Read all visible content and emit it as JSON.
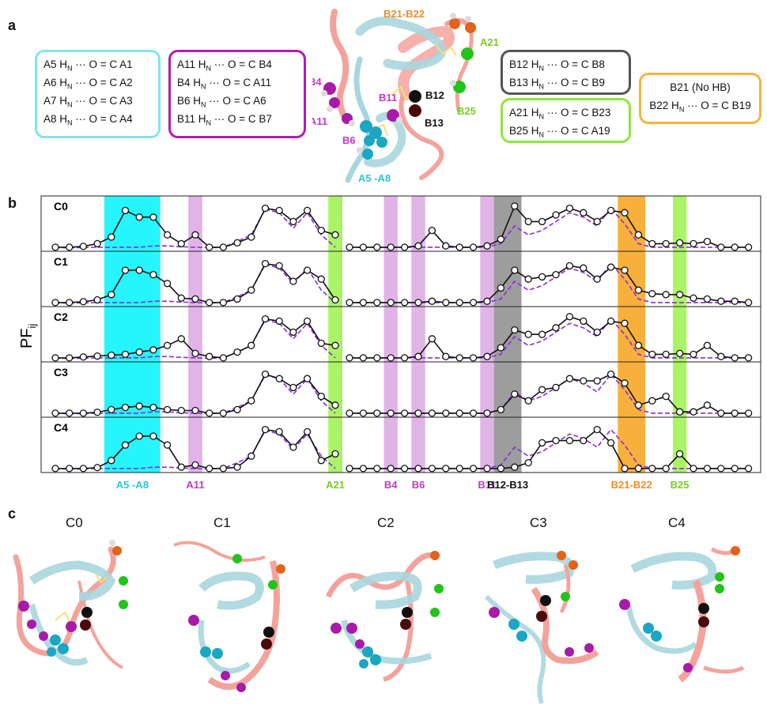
{
  "panels": {
    "a": "a",
    "b": "b",
    "c": "c"
  },
  "boxes": [
    {
      "id": "box1",
      "color": "#7fe6ec",
      "lines": [
        "A5 HN ··· O = C A1",
        "A6 HN ··· O = C A2",
        "A7 HN ··· O = C A3",
        "A8 HN ··· O = C A4"
      ]
    },
    {
      "id": "box2",
      "color": "#b21bb4",
      "lines": [
        "A11 HN ··· O = C B4",
        "B4 HN ··· O = C A11",
        "B6 HN ··· O = C A6",
        "B11 HN ··· O = C B7"
      ]
    },
    {
      "id": "box3",
      "color": "#555555",
      "lines": [
        "B12 HN ··· O = C B8",
        "B13 HN ··· O = C B9"
      ]
    },
    {
      "id": "box4",
      "color": "#8fe63c",
      "lines": [
        "A21 HN ··· O = C B23",
        "B25 HN ··· O = C A19"
      ]
    },
    {
      "id": "box5",
      "color": "#f5b63a",
      "lines": [
        "B21 (No HB)",
        "B22 HN ··· O = C B19"
      ]
    }
  ],
  "structure_labels": {
    "b21_b22": "B21-B22",
    "a21": "A21",
    "b4": "B4",
    "b11": "B11",
    "b12": "B12",
    "a11": "A11",
    "b13": "B13",
    "b25": "B25",
    "b6": "B6",
    "a5_a8": "A5 -A8"
  },
  "chart_data": {
    "type": "line",
    "ylabel": "PFij",
    "chain_a": {
      "x": [
        1,
        2,
        3,
        4,
        5,
        6,
        7,
        8,
        9,
        10,
        11,
        12,
        13,
        14,
        15,
        16,
        17,
        18,
        19,
        20,
        21
      ]
    },
    "chain_b": {
      "x": [
        1,
        2,
        3,
        4,
        5,
        6,
        7,
        8,
        9,
        10,
        11,
        12,
        13,
        14,
        15,
        16,
        17,
        18,
        19,
        20,
        21,
        22,
        23,
        24,
        25,
        26,
        27,
        28,
        29,
        30
      ]
    },
    "rows": [
      {
        "name": "C0",
        "a": [
          0.02,
          0.02,
          0.04,
          0.1,
          0.25,
          0.85,
          0.7,
          0.7,
          0.3,
          0.1,
          0.3,
          0.02,
          0.02,
          0.12,
          0.25,
          0.9,
          0.85,
          0.6,
          0.85,
          0.4,
          0.3
        ],
        "a_ref": [
          0.01,
          0.01,
          0.01,
          0.02,
          0.02,
          0.02,
          0.02,
          0.05,
          0.05,
          0.03,
          0.02,
          0.01,
          0.02,
          0.15,
          0.3,
          0.88,
          0.8,
          0.45,
          0.8,
          0.3,
          0.02
        ],
        "b": [
          0.02,
          0.02,
          0.02,
          0.02,
          0.02,
          0.05,
          0.4,
          0.05,
          0.02,
          0.02,
          0.05,
          0.2,
          0.95,
          0.6,
          0.6,
          0.75,
          0.9,
          0.8,
          0.6,
          0.85,
          0.8,
          0.3,
          0.1,
          0.1,
          0.12,
          0.1,
          0.15,
          0.02,
          0.02,
          0.02
        ],
        "b_ref": [
          0.02,
          0.02,
          0.02,
          0.02,
          0.02,
          0.02,
          0.02,
          0.02,
          0.02,
          0.02,
          0.02,
          0.1,
          0.5,
          0.3,
          0.4,
          0.6,
          0.8,
          0.7,
          0.5,
          0.9,
          0.55,
          0.1,
          0.02,
          0.02,
          0.02,
          0.02,
          0.02,
          0.02,
          0.02,
          0.02
        ]
      },
      {
        "name": "C1",
        "a": [
          0.02,
          0.02,
          0.04,
          0.08,
          0.2,
          0.75,
          0.75,
          0.65,
          0.45,
          0.12,
          0.1,
          0.02,
          0.02,
          0.1,
          0.3,
          0.9,
          0.85,
          0.5,
          0.75,
          0.55,
          0.08
        ],
        "a_ref": [
          0.01,
          0.01,
          0.01,
          0.02,
          0.02,
          0.02,
          0.02,
          0.05,
          0.05,
          0.03,
          0.02,
          0.01,
          0.02,
          0.15,
          0.3,
          0.88,
          0.8,
          0.45,
          0.8,
          0.3,
          0.02
        ],
        "b": [
          0.02,
          0.02,
          0.02,
          0.02,
          0.02,
          0.02,
          0.05,
          0.02,
          0.02,
          0.02,
          0.05,
          0.35,
          0.75,
          0.55,
          0.6,
          0.65,
          0.85,
          0.8,
          0.55,
          0.82,
          0.75,
          0.3,
          0.22,
          0.2,
          0.2,
          0.12,
          0.1,
          0.05,
          0.05,
          0.02
        ],
        "b_ref": [
          0.02,
          0.02,
          0.02,
          0.02,
          0.02,
          0.02,
          0.02,
          0.02,
          0.02,
          0.02,
          0.02,
          0.1,
          0.5,
          0.3,
          0.4,
          0.6,
          0.8,
          0.7,
          0.5,
          0.9,
          0.55,
          0.1,
          0.02,
          0.02,
          0.02,
          0.02,
          0.02,
          0.02,
          0.02,
          0.02
        ]
      },
      {
        "name": "C2",
        "a": [
          0.02,
          0.02,
          0.04,
          0.06,
          0.08,
          0.1,
          0.15,
          0.2,
          0.3,
          0.45,
          0.12,
          0.05,
          0.02,
          0.15,
          0.3,
          0.9,
          0.85,
          0.6,
          0.85,
          0.35,
          0.3
        ],
        "a_ref": [
          0.01,
          0.01,
          0.01,
          0.02,
          0.02,
          0.02,
          0.02,
          0.05,
          0.05,
          0.03,
          0.02,
          0.01,
          0.02,
          0.15,
          0.3,
          0.88,
          0.8,
          0.45,
          0.8,
          0.3,
          0.02
        ],
        "b": [
          0.02,
          0.02,
          0.02,
          0.02,
          0.02,
          0.05,
          0.45,
          0.05,
          0.02,
          0.02,
          0.05,
          0.25,
          0.65,
          0.55,
          0.55,
          0.7,
          0.95,
          0.85,
          0.6,
          0.85,
          0.8,
          0.3,
          0.1,
          0.1,
          0.12,
          0.1,
          0.3,
          0.05,
          0.02,
          0.02
        ],
        "b_ref": [
          0.02,
          0.02,
          0.02,
          0.02,
          0.02,
          0.02,
          0.02,
          0.02,
          0.02,
          0.02,
          0.02,
          0.1,
          0.5,
          0.3,
          0.4,
          0.6,
          0.8,
          0.7,
          0.5,
          0.9,
          0.55,
          0.1,
          0.02,
          0.02,
          0.02,
          0.02,
          0.02,
          0.02,
          0.02,
          0.02
        ]
      },
      {
        "name": "C3",
        "a": [
          0.02,
          0.02,
          0.02,
          0.04,
          0.1,
          0.15,
          0.18,
          0.15,
          0.1,
          0.08,
          0.08,
          0.02,
          0.02,
          0.1,
          0.3,
          0.9,
          0.8,
          0.6,
          0.8,
          0.4,
          0.2
        ],
        "a_ref": [
          0.01,
          0.01,
          0.01,
          0.02,
          0.02,
          0.02,
          0.02,
          0.05,
          0.05,
          0.03,
          0.02,
          0.01,
          0.02,
          0.15,
          0.3,
          0.88,
          0.8,
          0.45,
          0.8,
          0.3,
          0.02
        ],
        "b": [
          0.02,
          0.02,
          0.02,
          0.02,
          0.02,
          0.02,
          0.02,
          0.02,
          0.02,
          0.02,
          0.02,
          0.1,
          0.45,
          0.3,
          0.55,
          0.6,
          0.8,
          0.75,
          0.75,
          0.9,
          0.7,
          0.2,
          0.3,
          0.4,
          0.05,
          0.05,
          0.2,
          0.02,
          0.02,
          0.02
        ],
        "b_ref": [
          0.02,
          0.02,
          0.02,
          0.02,
          0.02,
          0.02,
          0.02,
          0.02,
          0.02,
          0.02,
          0.02,
          0.1,
          0.5,
          0.3,
          0.4,
          0.6,
          0.8,
          0.7,
          0.5,
          0.9,
          0.55,
          0.1,
          0.02,
          0.02,
          0.02,
          0.02,
          0.02,
          0.02,
          0.02,
          0.02
        ]
      },
      {
        "name": "C4",
        "a": [
          0.02,
          0.02,
          0.02,
          0.04,
          0.2,
          0.55,
          0.75,
          0.75,
          0.55,
          0.05,
          0.1,
          0.02,
          0.02,
          0.05,
          0.3,
          0.9,
          0.85,
          0.5,
          0.85,
          0.2,
          0.35
        ],
        "a_ref": [
          0.01,
          0.01,
          0.01,
          0.02,
          0.02,
          0.02,
          0.02,
          0.05,
          0.05,
          0.03,
          0.02,
          0.01,
          0.02,
          0.15,
          0.3,
          0.88,
          0.8,
          0.45,
          0.8,
          0.3,
          0.02
        ],
        "b": [
          0.02,
          0.02,
          0.02,
          0.02,
          0.02,
          0.02,
          0.02,
          0.02,
          0.02,
          0.02,
          0.02,
          0.02,
          0.05,
          0.15,
          0.6,
          0.65,
          0.65,
          0.65,
          0.9,
          0.6,
          0.02,
          0.02,
          0.02,
          0.02,
          0.35,
          0.02,
          0.02,
          0.02,
          0.02,
          0.02
        ],
        "b_ref": [
          0.02,
          0.02,
          0.02,
          0.02,
          0.02,
          0.02,
          0.02,
          0.02,
          0.02,
          0.02,
          0.02,
          0.1,
          0.5,
          0.3,
          0.4,
          0.6,
          0.8,
          0.7,
          0.5,
          0.9,
          0.55,
          0.1,
          0.02,
          0.02,
          0.02,
          0.02,
          0.02,
          0.02,
          0.02,
          0.02
        ]
      }
    ],
    "highlights": [
      {
        "label": "A5 -A8",
        "color": "#00f5fa",
        "text_color": "#2cc6d6",
        "chain": "a",
        "from": 5,
        "to": 8
      },
      {
        "label": "A11",
        "color": "#d79be0",
        "text_color": "#c03ac8",
        "chain": "a",
        "from": 11,
        "to": 11
      },
      {
        "label": "A21",
        "color": "#9ef24c",
        "text_color": "#7acb28",
        "chain": "a",
        "from": 21,
        "to": 21
      },
      {
        "label": "B4",
        "color": "#d79be0",
        "text_color": "#c03ac8",
        "chain": "b",
        "from": 4,
        "to": 4
      },
      {
        "label": "B6",
        "color": "#d79be0",
        "text_color": "#c03ac8",
        "chain": "b",
        "from": 6,
        "to": 6
      },
      {
        "label": "B11",
        "color": "#d79be0",
        "text_color": "#c03ac8",
        "chain": "b",
        "from": 11,
        "to": 11
      },
      {
        "label": "B12-B13",
        "color": "#8c8c8c",
        "text_color": "#111111",
        "chain": "b",
        "from": 12,
        "to": 13
      },
      {
        "label": "B21-B22",
        "color": "#f7a21a",
        "text_color": "#ef8d28",
        "chain": "b",
        "from": 21,
        "to": 22
      },
      {
        "label": "B25",
        "color": "#9ef24c",
        "text_color": "#7acb28",
        "chain": "b",
        "from": 25,
        "to": 25
      }
    ]
  },
  "conformers": [
    {
      "label": "C0"
    },
    {
      "label": "C1"
    },
    {
      "label": "C2"
    },
    {
      "label": "C3"
    },
    {
      "label": "C4"
    }
  ],
  "colors": {
    "chainA": "#a9d6de",
    "chainB": "#f3a39b",
    "cyan": "#1ba6c2",
    "magenta": "#a81ba8",
    "black": "#111111",
    "darkred": "#4a0a0a",
    "green": "#22c41a",
    "orange": "#e0641a",
    "ref": "#8a2be2"
  }
}
